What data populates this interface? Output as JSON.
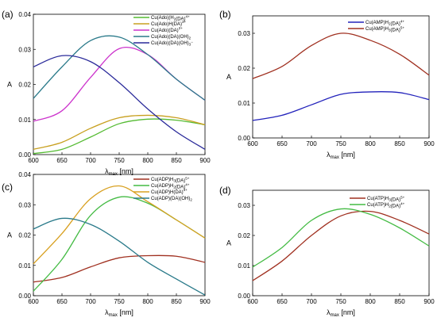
{
  "chart_data": [
    {
      "type": "line",
      "panel_label": "(a)",
      "xlabel": "λmax [nm]",
      "xlabel_main": "λ",
      "xlabel_sub": "max",
      "xlabel_unit": " [nm]",
      "ylabel": "A",
      "xlim": [
        600,
        900
      ],
      "ylim": [
        0,
        0.04
      ],
      "xticks": [
        600,
        650,
        700,
        750,
        800,
        850,
        900
      ],
      "yticks": [
        0,
        0.01,
        0.02,
        0.03,
        0.04
      ],
      "ytick_labels": [
        "0.00",
        "0.01",
        "0.02",
        "0.03",
        "0.04"
      ],
      "legend_position": "top-right",
      "series": [
        {
          "name": "Cu(Ado)(H2(DA)4+",
          "legend": [
            [
              "Cu(Ado)(H",
              ""
            ],
            [
              "2",
              "sub"
            ],
            [
              "(DA)",
              ""
            ],
            [
              "4+",
              "sup"
            ]
          ],
          "color": "#55bb33",
          "x": [
            600,
            650,
            700,
            750,
            800,
            850,
            900
          ],
          "y": [
            0.0003,
            0.0015,
            0.005,
            0.0088,
            0.0101,
            0.0098,
            0.0085
          ]
        },
        {
          "name": "Cu(Ado)H(DA)3+",
          "legend": [
            [
              "Cu(Ado)H(DA)",
              ""
            ],
            [
              "3+",
              "sup"
            ]
          ],
          "color": "#c8a020",
          "x": [
            600,
            650,
            700,
            750,
            800,
            850,
            900
          ],
          "y": [
            0.0015,
            0.0035,
            0.0075,
            0.0105,
            0.0112,
            0.0105,
            0.0085
          ]
        },
        {
          "name": "Cu(Ado)(DA)2+",
          "legend": [
            [
              "Cu(Ado)(DA)",
              ""
            ],
            [
              "2+",
              "sup"
            ]
          ],
          "color": "#cc33cc",
          "x": [
            600,
            650,
            700,
            750,
            800,
            850,
            900
          ],
          "y": [
            0.0095,
            0.0125,
            0.022,
            0.0302,
            0.0285,
            0.0215,
            0.0155
          ]
        },
        {
          "name": "Cu(Ado)(DA)(OH)2",
          "legend": [
            [
              "Cu(Ado)(DA)(OH)",
              ""
            ],
            [
              "2",
              "sub"
            ]
          ],
          "color": "#2a7a8a",
          "x": [
            600,
            650,
            700,
            750,
            800,
            850,
            900
          ],
          "y": [
            0.016,
            0.025,
            0.0325,
            0.0335,
            0.0285,
            0.0215,
            0.0155
          ]
        },
        {
          "name": "Cu(Ado)(DA)(OH)3-",
          "legend": [
            [
              "Cu(Ado)(DA)(OH)",
              ""
            ],
            [
              "3",
              "sub"
            ],
            [
              "−",
              "sup"
            ]
          ],
          "color": "#2a2a9a",
          "x": [
            600,
            650,
            700,
            750,
            800,
            850,
            900
          ],
          "y": [
            0.025,
            0.0282,
            0.0265,
            0.0205,
            0.013,
            0.0065,
            0.0015
          ]
        }
      ]
    },
    {
      "type": "line",
      "panel_label": "(b)",
      "xlabel": "λmax [nm]",
      "xlabel_main": "λ",
      "xlabel_sub": "max",
      "xlabel_unit": " [nm]",
      "ylabel": "A",
      "xlim": [
        600,
        900
      ],
      "ylim": [
        0,
        0.035
      ],
      "xticks": [
        600,
        650,
        700,
        750,
        800,
        850,
        900
      ],
      "yticks": [
        0,
        0.01,
        0.02,
        0.03
      ],
      "ytick_labels": [
        "0.00",
        "0.01",
        "0.02",
        "0.03"
      ],
      "legend_position": "top-right",
      "series": [
        {
          "name": "Cu(AMP)H2(DA)4+",
          "legend": [
            [
              "Cu(AMP)H",
              ""
            ],
            [
              "2",
              "sub"
            ],
            [
              "(DA)",
              ""
            ],
            [
              "4+",
              "sup"
            ]
          ],
          "color": "#2222bb",
          "x": [
            600,
            650,
            700,
            750,
            800,
            850,
            900
          ],
          "y": [
            0.005,
            0.0065,
            0.0095,
            0.0125,
            0.0132,
            0.013,
            0.011
          ]
        },
        {
          "name": "Cu(AMP)H3(DA)5+",
          "legend": [
            [
              "Cu(AMP)H",
              ""
            ],
            [
              "3",
              "sub"
            ],
            [
              "(DA)",
              ""
            ],
            [
              "5+",
              "sup"
            ]
          ],
          "color": "#a03020",
          "x": [
            600,
            650,
            700,
            750,
            800,
            850,
            900
          ],
          "y": [
            0.017,
            0.0205,
            0.0265,
            0.03,
            0.028,
            0.024,
            0.018
          ]
        }
      ]
    },
    {
      "type": "line",
      "panel_label": "(c)",
      "xlabel": "λmax [nm]",
      "xlabel_main": "λ",
      "xlabel_sub": "max",
      "xlabel_unit": " [nm]",
      "ylabel": "A",
      "xlim": [
        600,
        900
      ],
      "ylim": [
        0,
        0.04
      ],
      "xticks": [
        600,
        650,
        700,
        750,
        800,
        850,
        900
      ],
      "yticks": [
        0,
        0.01,
        0.02,
        0.03,
        0.04
      ],
      "ytick_labels": [
        "0.00",
        "0.01",
        "0.02",
        "0.03",
        "0.04"
      ],
      "legend_position": "top-right",
      "series": [
        {
          "name": "Cu(ADP)H3(DA)5+",
          "legend": [
            [
              "Cu(ADP)H",
              ""
            ],
            [
              "3",
              "sub"
            ],
            [
              "(DA)",
              ""
            ],
            [
              "5+",
              "sup"
            ]
          ],
          "color": "#a03020",
          "x": [
            600,
            650,
            700,
            750,
            800,
            850,
            900
          ],
          "y": [
            0.0045,
            0.006,
            0.0095,
            0.0125,
            0.0132,
            0.013,
            0.011
          ]
        },
        {
          "name": "Cu(ADP)H2(DA)4+",
          "legend": [
            [
              "Cu(ADP)H",
              ""
            ],
            [
              "2",
              "sub"
            ],
            [
              "(DA)",
              ""
            ],
            [
              "4+",
              "sup"
            ]
          ],
          "color": "#44bb44",
          "x": [
            600,
            650,
            700,
            750,
            800,
            850,
            900
          ],
          "y": [
            0.0015,
            0.012,
            0.0265,
            0.0325,
            0.0305,
            0.025,
            0.019
          ]
        },
        {
          "name": "Cu(ADP)H(DA)3+",
          "legend": [
            [
              "Cu(ADP)H(DA)",
              ""
            ],
            [
              "3+",
              "sup"
            ]
          ],
          "color": "#d8a020",
          "x": [
            600,
            650,
            700,
            750,
            800,
            850,
            900
          ],
          "y": [
            0.0105,
            0.0205,
            0.032,
            0.0362,
            0.031,
            0.025,
            0.019
          ]
        },
        {
          "name": "Cu(ADP)(DA)(OH)2",
          "legend": [
            [
              "Cu(ADP)(DA)(OH)",
              ""
            ],
            [
              "2",
              "sub"
            ]
          ],
          "color": "#2a7a8a",
          "x": [
            600,
            650,
            700,
            750,
            800,
            850,
            900
          ],
          "y": [
            0.022,
            0.0255,
            0.0235,
            0.018,
            0.011,
            0.0055,
            0.0002
          ]
        }
      ]
    },
    {
      "type": "line",
      "panel_label": "(d)",
      "xlabel": "λmax [nm]",
      "xlabel_main": "λ",
      "xlabel_sub": "max",
      "xlabel_unit": " [nm]",
      "ylabel": "A",
      "xlim": [
        600,
        900
      ],
      "ylim": [
        0,
        0.035
      ],
      "xticks": [
        600,
        650,
        700,
        750,
        800,
        850,
        900
      ],
      "yticks": [
        0,
        0.01,
        0.02,
        0.03
      ],
      "ytick_labels": [
        "0.00",
        "0.01",
        "0.02",
        "0.03"
      ],
      "legend_position": "top-right",
      "series": [
        {
          "name": "Cu(ATP)H3(DA)5+",
          "legend": [
            [
              "Cu(ATP)H",
              ""
            ],
            [
              "3",
              "sub"
            ],
            [
              "(DA)",
              ""
            ],
            [
              "5+",
              "sup"
            ]
          ],
          "color": "#a03020",
          "x": [
            600,
            650,
            700,
            750,
            800,
            850,
            900
          ],
          "y": [
            0.005,
            0.0115,
            0.02,
            0.0265,
            0.028,
            0.025,
            0.0205
          ]
        },
        {
          "name": "Cu(ATP)H2(DA)4+",
          "legend": [
            [
              "Cu(ATP)H",
              ""
            ],
            [
              "2",
              "sub"
            ],
            [
              "(DA)",
              ""
            ],
            [
              "4+",
              "sup"
            ]
          ],
          "color": "#44bb44",
          "x": [
            600,
            650,
            700,
            750,
            800,
            850,
            900
          ],
          "y": [
            0.0095,
            0.016,
            0.025,
            0.0288,
            0.027,
            0.0225,
            0.0165
          ]
        }
      ]
    }
  ]
}
